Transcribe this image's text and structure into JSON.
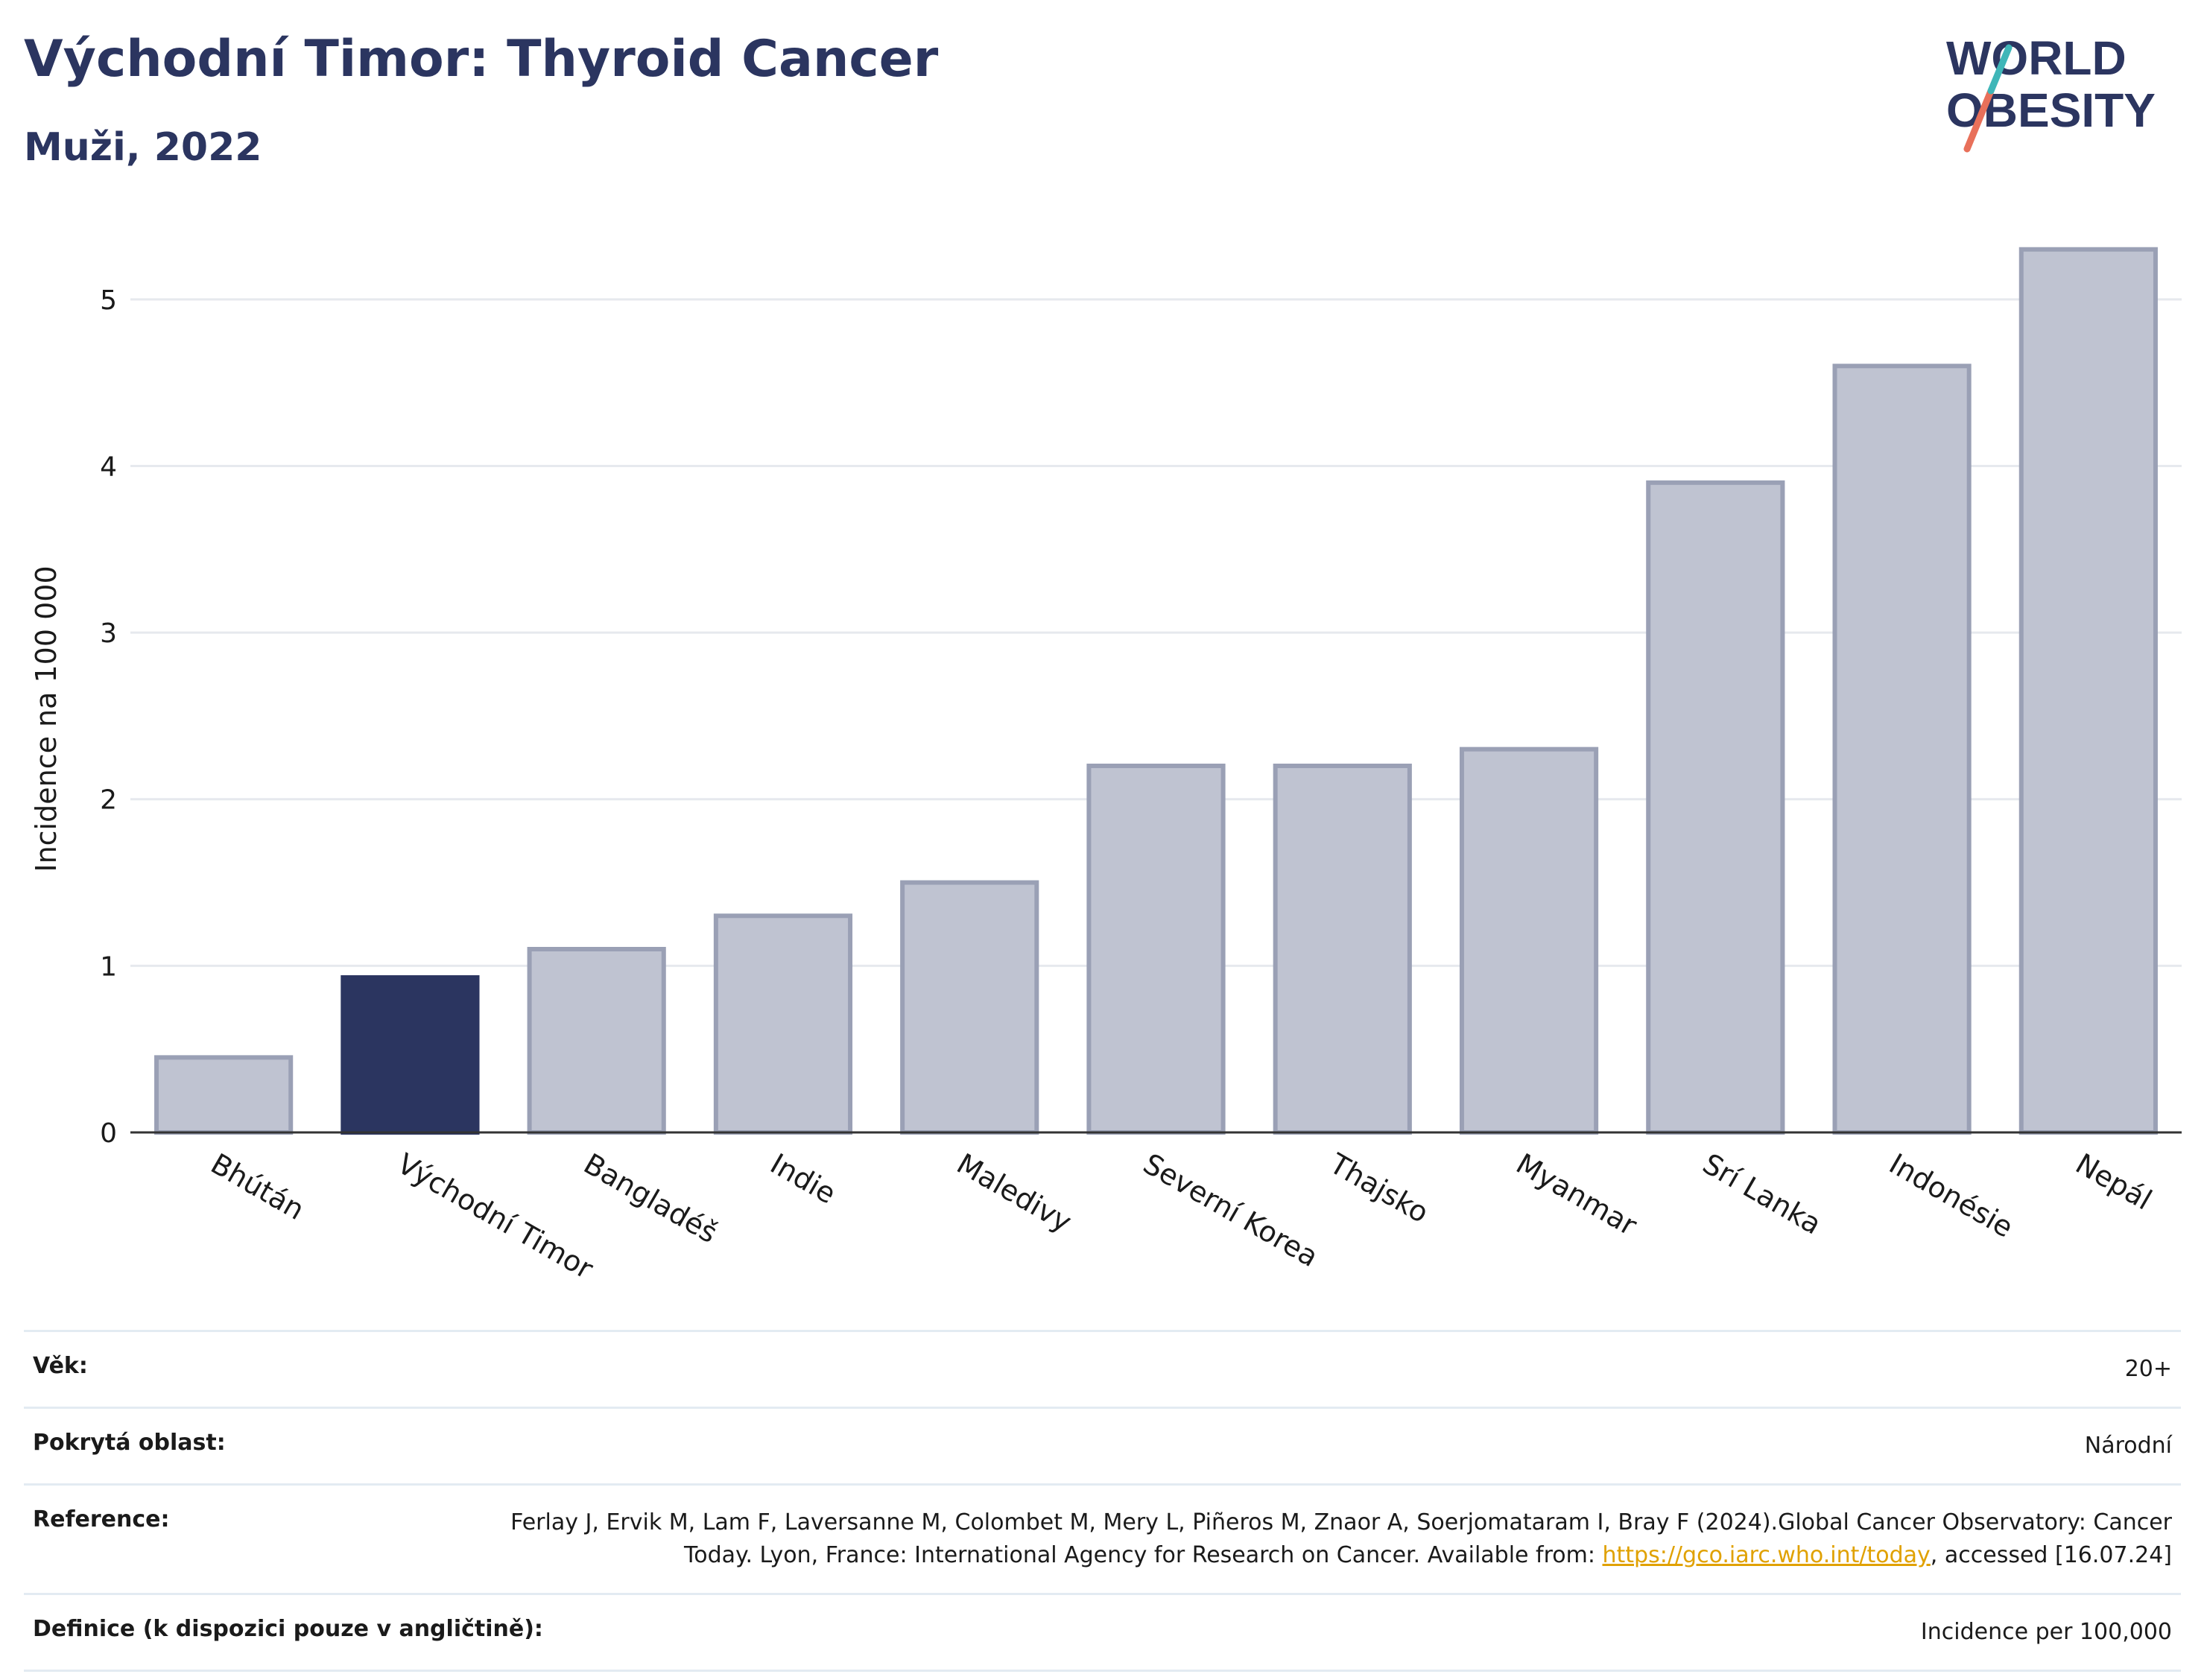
{
  "header": {
    "title": "Východní Timor: Thyroid Cancer",
    "subtitle": "Muži, 2022"
  },
  "logo": {
    "line1": "WORLD",
    "line2": "OBESITY"
  },
  "colors": {
    "highlight": "#2b3560",
    "bar": "#bfc3d1",
    "bar_border": "#9aa0b5",
    "grid": "#e6e9ee",
    "accent_teal": "#3fb6b8",
    "accent_coral": "#e8705a"
  },
  "chart_data": {
    "type": "bar",
    "title": "Východní Timor: Thyroid Cancer",
    "subtitle": "Muži, 2022",
    "ylabel": "Incidence na 100 000",
    "xlabel": "",
    "categories": [
      "Bhútán",
      "Východní Timor",
      "Bangladéš",
      "Indie",
      "Maledivy",
      "Severní Korea",
      "Thajsko",
      "Myanmar",
      "Srí Lanka",
      "Indonésie",
      "Nepál"
    ],
    "values": [
      0.45,
      0.93,
      1.1,
      1.3,
      1.5,
      2.2,
      2.2,
      2.3,
      3.9,
      4.6,
      5.3
    ],
    "highlight": "Východní Timor",
    "ylim": [
      0,
      5.5
    ],
    "yticks": [
      "0",
      "1",
      "2",
      "3",
      "4",
      "5"
    ],
    "grid": true
  },
  "table": {
    "rows": [
      {
        "key": "Věk:",
        "value": "20+"
      },
      {
        "key": "Pokrytá oblast:",
        "value": "Národní"
      },
      {
        "key": "Reference:",
        "value_before": "Ferlay J, Ervik M, Lam F, Laversanne M, Colombet M, Mery L, Piñeros M, Znaor A, Soerjomataram I, Bray F (2024).Global Cancer Observatory: Cancer Today. Lyon, France: International Agency for Research on Cancer. Available from: ",
        "link": "https://gco.iarc.who.int/today",
        "value_after": ", accessed [16.07.24]"
      },
      {
        "key": "Definice (k dispozici pouze v angličtině):",
        "value": "Incidence per 100,000"
      }
    ]
  }
}
